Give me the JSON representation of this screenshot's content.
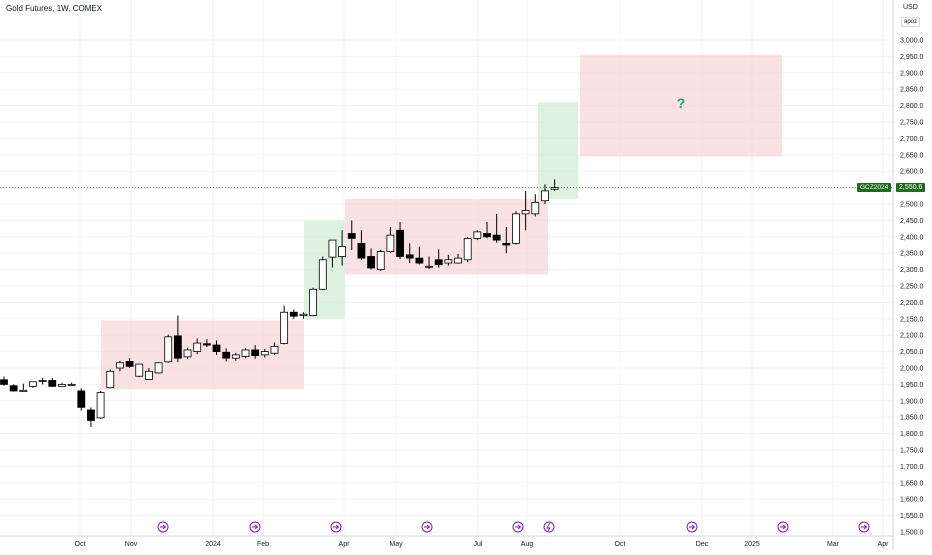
{
  "header": {
    "title": "Gold Futures, 1W, COMEX",
    "currency": "USD",
    "user": "apoz"
  },
  "last_price": {
    "ticker": "GCZ2024",
    "value": "2,550.6",
    "color": "#1e6b1e"
  },
  "annotation": {
    "text": "?",
    "color": "#26a269"
  },
  "colors": {
    "range_box": "#f8d7da",
    "breakout_box": "#d4ecd5",
    "up_candle": "#ffffff",
    "down_candle": "#000000"
  },
  "chart_data": {
    "type": "candlestick",
    "title": "Gold Futures, 1W, COMEX",
    "ylim": [
      1500,
      3050
    ],
    "y_ticks": [
      "1,500.0",
      "1,550.0",
      "1,600.0",
      "1,650.0",
      "1,700.0",
      "1,750.0",
      "1,800.0",
      "1,850.0",
      "1,900.0",
      "1,950.0",
      "2,000.0",
      "2,050.0",
      "2,100.0",
      "2,150.0",
      "2,200.0",
      "2,250.0",
      "2,300.0",
      "2,350.0",
      "2,400.0",
      "2,450.0",
      "2,500.0",
      "2,550.0",
      "2,600.0",
      "2,650.0",
      "2,700.0",
      "2,750.0",
      "2,800.0",
      "2,850.0",
      "2,900.0",
      "2,950.0",
      "3,000.0"
    ],
    "x_ticks": [
      "Oct",
      "Nov",
      "2024",
      "Feb",
      "Apr",
      "May",
      "Jul",
      "Aug",
      "Oct",
      "Dec",
      "2025",
      "Mar",
      "Apr"
    ],
    "candles": [
      [
        1964,
        1974,
        1950,
        1946
      ],
      [
        1946,
        1950,
        1930,
        1928
      ],
      [
        1928,
        1952,
        1932,
        1928
      ],
      [
        1944,
        1956,
        1958,
        1940
      ],
      [
        1959,
        1970,
        1962,
        1950
      ],
      [
        1962,
        1970,
        1944,
        1942
      ],
      [
        1944,
        1955,
        1950,
        1944
      ],
      [
        1950,
        1955,
        1950,
        1946
      ],
      [
        1930,
        1938,
        1880,
        1870
      ],
      [
        1872,
        1880,
        1840,
        1820
      ],
      [
        1848,
        1930,
        1925,
        1845
      ],
      [
        1940,
        1995,
        1990,
        1938
      ],
      [
        2000,
        2022,
        2016,
        1990
      ],
      [
        2020,
        2030,
        2005,
        2000
      ],
      [
        1975,
        2012,
        2012,
        1972
      ],
      [
        1965,
        2000,
        1990,
        1964
      ],
      [
        1985,
        2018,
        2016,
        1983
      ],
      [
        2019,
        2102,
        2095,
        2016
      ],
      [
        2098,
        2160,
        2030,
        2018
      ],
      [
        2034,
        2062,
        2055,
        2028
      ],
      [
        2050,
        2090,
        2076,
        2042
      ],
      [
        2074,
        2088,
        2070,
        2064
      ],
      [
        2070,
        2084,
        2050,
        2040
      ],
      [
        2048,
        2060,
        2030,
        2020
      ],
      [
        2030,
        2046,
        2040,
        2022
      ],
      [
        2035,
        2060,
        2055,
        2030
      ],
      [
        2055,
        2070,
        2038,
        2028
      ],
      [
        2040,
        2058,
        2050,
        2032
      ],
      [
        2045,
        2078,
        2066,
        2040
      ],
      [
        2075,
        2190,
        2170,
        2072
      ],
      [
        2170,
        2178,
        2158,
        2150
      ],
      [
        2160,
        2170,
        2164,
        2150
      ],
      [
        2160,
        2245,
        2240,
        2158
      ],
      [
        2240,
        2340,
        2330,
        2238
      ],
      [
        2338,
        2382,
        2390,
        2306
      ],
      [
        2340,
        2420,
        2370,
        2312
      ],
      [
        2410,
        2450,
        2395,
        2360
      ],
      [
        2380,
        2420,
        2335,
        2330
      ],
      [
        2340,
        2365,
        2305,
        2300
      ],
      [
        2300,
        2360,
        2355,
        2296
      ],
      [
        2355,
        2430,
        2405,
        2350
      ],
      [
        2420,
        2445,
        2340,
        2332
      ],
      [
        2345,
        2380,
        2335,
        2320
      ],
      [
        2335,
        2370,
        2320,
        2316
      ],
      [
        2310,
        2340,
        2310,
        2302
      ],
      [
        2330,
        2362,
        2315,
        2306
      ],
      [
        2320,
        2345,
        2330,
        2312
      ],
      [
        2320,
        2348,
        2335,
        2318
      ],
      [
        2330,
        2400,
        2395,
        2322
      ],
      [
        2395,
        2420,
        2415,
        2390
      ],
      [
        2410,
        2445,
        2400,
        2395
      ],
      [
        2405,
        2470,
        2390,
        2382
      ],
      [
        2380,
        2430,
        2375,
        2350
      ],
      [
        2380,
        2478,
        2470,
        2376
      ],
      [
        2470,
        2540,
        2480,
        2420
      ],
      [
        2470,
        2530,
        2505,
        2462
      ],
      [
        2510,
        2560,
        2540,
        2500
      ],
      [
        2545,
        2575,
        2550,
        2540
      ]
    ],
    "zones": [
      {
        "kind": "range",
        "y_range": [
          1935,
          2145
        ]
      },
      {
        "kind": "breakout",
        "y_range": [
          2150,
          2450
        ]
      },
      {
        "kind": "range",
        "y_range": [
          2285,
          2515
        ]
      },
      {
        "kind": "breakout",
        "y_range": [
          2515,
          2810
        ]
      },
      {
        "kind": "projection",
        "y_range": [
          2645,
          2955
        ]
      }
    ],
    "last_price": 2550.6
  }
}
